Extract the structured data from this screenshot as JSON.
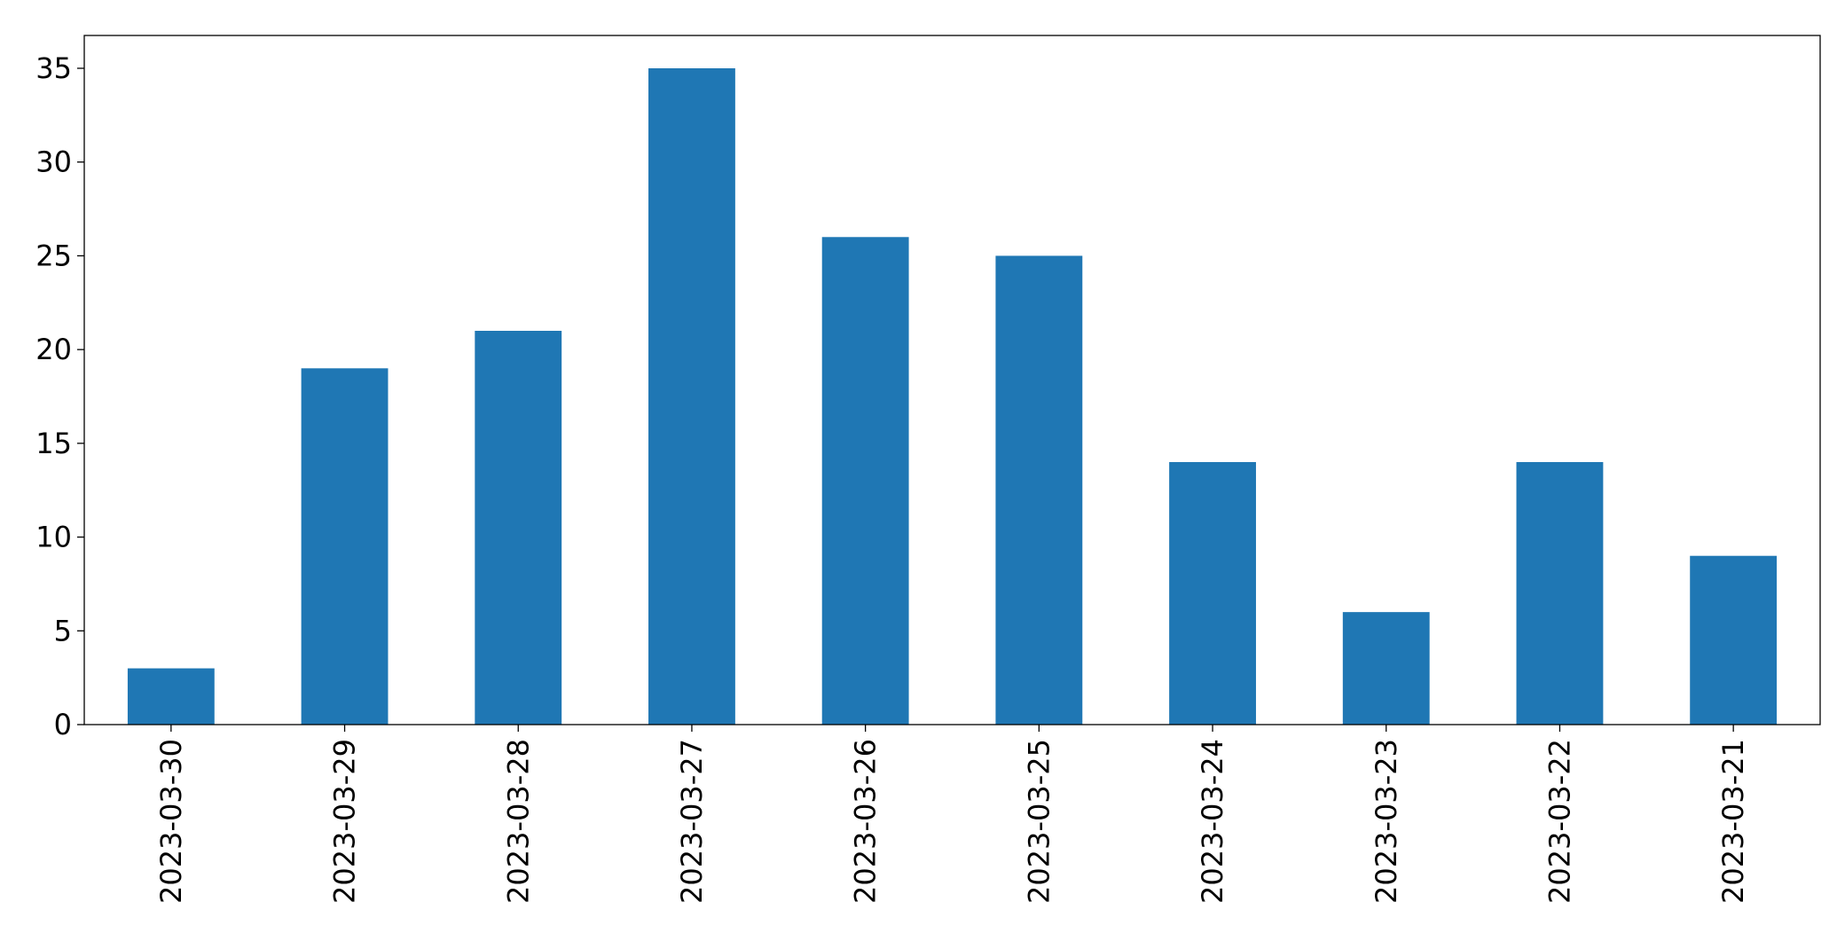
{
  "chart_data": {
    "type": "bar",
    "categories": [
      "2023-03-30",
      "2023-03-29",
      "2023-03-28",
      "2023-03-27",
      "2023-03-26",
      "2023-03-25",
      "2023-03-24",
      "2023-03-23",
      "2023-03-22",
      "2023-03-21"
    ],
    "values": [
      3,
      19,
      21,
      35,
      26,
      25,
      14,
      6,
      14,
      9
    ],
    "color": "#1f77b4",
    "ylim": [
      0,
      36.75
    ],
    "yticks": [
      0,
      5,
      10,
      15,
      20,
      25,
      30,
      35
    ],
    "grid": false
  }
}
